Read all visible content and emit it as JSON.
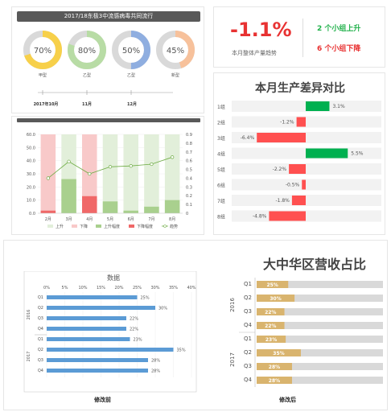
{
  "top_left": {
    "title": "2017/18东极3中流感病毒共同流行",
    "donuts": [
      {
        "pct_label": "70%",
        "value": 0.7,
        "label": "甲型",
        "color": "#f7d04a"
      },
      {
        "pct_label": "80%",
        "value": 0.8,
        "label": "乙型",
        "color": "#b8dca5"
      },
      {
        "pct_label": "50%",
        "value": 0.5,
        "label": "乙型",
        "color": "#8faee0"
      },
      {
        "pct_label": "45%",
        "value": 0.45,
        "label": "新型",
        "color": "#f7c19b"
      }
    ],
    "timeline": [
      "2017年10月",
      "11月",
      "12月"
    ]
  },
  "kpi": {
    "value": "-1.1%",
    "caption": "本月整体产量趋势",
    "up_text": "2 个小组上升",
    "down_text": "6 个小组下降",
    "up_color": "#21b14b",
    "down_color": "#e83232"
  },
  "chart_data": [
    {
      "type": "bar",
      "categories": [
        "2月",
        "3月",
        "4月",
        "5月",
        "6月",
        "7月",
        "8月"
      ],
      "ylim": [
        0,
        60
      ],
      "yticks": [
        "0.0",
        "10.0",
        "20.0",
        "30.0",
        "40.0",
        "50.0",
        "60.0"
      ],
      "y2lim": [
        0,
        0.9
      ],
      "y2ticks": [
        "0",
        "0.1",
        "0.2",
        "0.3",
        "0.4",
        "0.5",
        "0.6",
        "0.7",
        "0.8",
        "0.9"
      ],
      "series": [
        {
          "name": "上升",
          "values": [
            0,
            60,
            0,
            60,
            60,
            60,
            60
          ],
          "color": "#e2efda"
        },
        {
          "name": "下降",
          "values": [
            60,
            0,
            60,
            0,
            0,
            0,
            0
          ],
          "color": "#f8c9c9"
        },
        {
          "name": "上升幅度",
          "values": [
            0,
            26,
            0,
            9,
            2,
            5,
            10
          ],
          "color": "#a9d08e"
        },
        {
          "name": "下降幅度",
          "values": [
            2,
            0,
            13,
            0,
            0,
            0,
            0
          ],
          "color": "#f06868"
        },
        {
          "name": "趋势",
          "values": [
            0.4,
            0.59,
            0.45,
            0.53,
            0.54,
            0.56,
            0.64
          ],
          "color": "#70ad47",
          "axis": "right"
        }
      ]
    },
    {
      "type": "bar",
      "title": "本月生产差异对比",
      "categories": [
        "1组",
        "2组",
        "3组",
        "4组",
        "5组",
        "6组",
        "7组",
        "8组"
      ],
      "values": [
        3.1,
        -1.2,
        -6.4,
        5.5,
        -2.2,
        -0.5,
        -1.8,
        -4.8
      ],
      "labels": [
        "3.1%",
        "-1.2%",
        "-6.4%",
        "5.5%",
        "-2.2%",
        "-0.5%",
        "-1.8%",
        "-4.8%"
      ],
      "pos_color": "#00b050",
      "neg_color": "#ff5050"
    },
    {
      "type": "bar",
      "title": "数据",
      "groups": [
        "2016",
        "2017"
      ],
      "categories": [
        "Q1",
        "Q2",
        "Q3",
        "Q4",
        "Q1",
        "Q2",
        "Q3",
        "Q4"
      ],
      "values": [
        25,
        30,
        22,
        22,
        23,
        35,
        28,
        28
      ],
      "labels": [
        "25%",
        "30%",
        "22%",
        "22%",
        "23%",
        "35%",
        "28%",
        "28%"
      ],
      "xticks": [
        "0%",
        "5%",
        "10%",
        "15%",
        "20%",
        "25%",
        "30%",
        "35%",
        "40%"
      ],
      "xlim": [
        0,
        40
      ],
      "color": "#5b9bd5",
      "caption": "修改前"
    },
    {
      "type": "bar",
      "title": "大中华区营收占比",
      "groups": [
        "2016",
        "2017"
      ],
      "categories": [
        "Q1",
        "Q2",
        "Q3",
        "Q4",
        "Q1",
        "Q2",
        "Q3",
        "Q4"
      ],
      "values": [
        25,
        30,
        22,
        22,
        23,
        35,
        28,
        28
      ],
      "labels": [
        "25%",
        "30%",
        "22%",
        "22%",
        "23%",
        "35%",
        "28%",
        "28%"
      ],
      "xlim": [
        0,
        100
      ],
      "color": "#d9b46e",
      "track_color": "#d9d9d9",
      "caption": "修改后"
    }
  ]
}
